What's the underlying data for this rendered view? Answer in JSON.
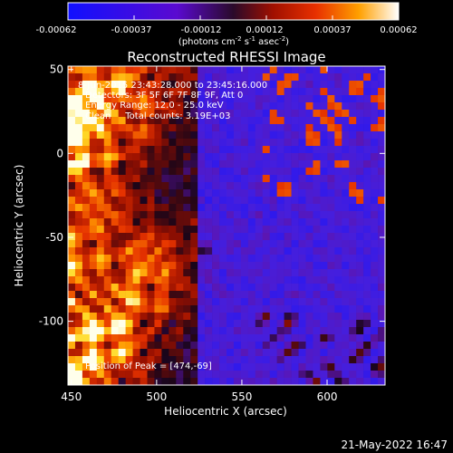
{
  "colorbar": {
    "tick_labels": [
      "-0.00062",
      "-0.00037",
      "-0.00012",
      "0.00012",
      "0.00037",
      "0.00062"
    ],
    "unit_prefix": "(photons cm",
    "unit_exp1": "-2",
    "unit_mid": " s",
    "unit_exp2": "-1",
    "unit_mid2": " asec",
    "unit_exp3": "-2",
    "unit_suffix": ")",
    "range": [
      -0.00062,
      0.00062
    ],
    "colormap": "red-temperature with blue-purple negatives"
  },
  "annotations": {
    "time_range": "8-Jun-2015 23:43:28.000 to 23:45:16.000",
    "detectors": "Detectors: 3F 5F 6F 7F 8F 9F, Att 0",
    "energy_range": "Energy Range: 12.0 - 25.0 keV",
    "method": "Clean     Total counts: 3.19E+03",
    "peak": "Position of Peak = [474,-69]"
  },
  "footer": {
    "date": "21-May-2022 16:47"
  },
  "chart_data": {
    "type": "heatmap",
    "title": "Reconstructed RHESSI Image",
    "xlabel": "Heliocentric X (arcsec)",
    "ylabel": "Heliocentric Y (arcsec)",
    "xlim": [
      448,
      634
    ],
    "ylim": [
      -138,
      52
    ],
    "x_ticks": [
      450,
      500,
      550,
      600
    ],
    "y_ticks": [
      50,
      0,
      -50,
      -100
    ],
    "peak_position": [
      474,
      -69
    ],
    "intensity_description": "bright emission concentrated on left side (x 450-520), negative/low values toward right",
    "grid": false
  }
}
